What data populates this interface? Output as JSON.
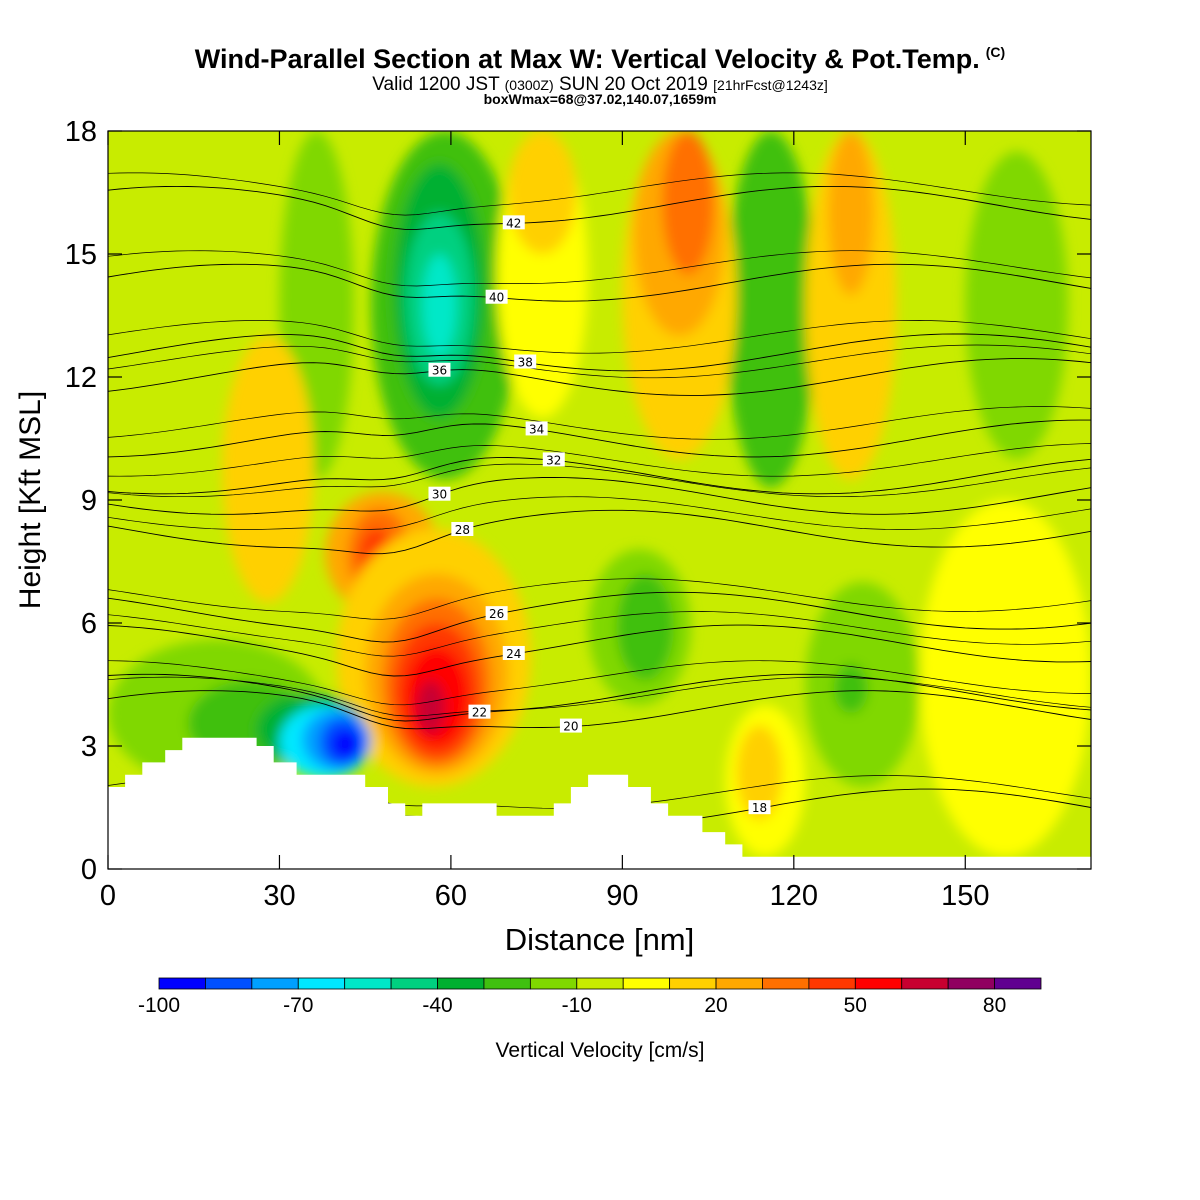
{
  "header": {
    "title": "Wind-Parallel Section at Max W: Vertical Velocity & Pot.Temp.",
    "copyright": "(C)",
    "valid_prefix": "Valid 1200 JST",
    "valid_zulu": "(0300Z)",
    "valid_date": "SUN 20 Oct 2019",
    "forecast_info": "[21hrFcst@1243z]",
    "box_info": "boxWmax=68@37.02,140.07,1659m"
  },
  "chart_data": {
    "type": "heatmap",
    "xlabel": "Distance [nm]",
    "ylabel": "Height [Kft MSL]",
    "xlim": [
      0,
      172
    ],
    "ylim": [
      0,
      18
    ],
    "x_ticks": [
      0,
      30,
      60,
      90,
      120,
      150
    ],
    "y_ticks": [
      0,
      3,
      6,
      9,
      12,
      15,
      18
    ],
    "x_tick_labels": [
      "0",
      "30",
      "60",
      "90",
      "120",
      "150"
    ],
    "y_tick_labels": [
      "0",
      "3",
      "6",
      "9",
      "12",
      "15",
      "18"
    ],
    "colorbar": {
      "label": "Vertical Velocity [cm/s]",
      "tick_labels": [
        "-100",
        "-70",
        "-40",
        "-10",
        "20",
        "50",
        "80"
      ],
      "colors": [
        "#0000ff",
        "#0050ff",
        "#00a0ff",
        "#00e8ff",
        "#00e8c8",
        "#00d080",
        "#00b030",
        "#40c010",
        "#80d800",
        "#c8ec00",
        "#ffff00",
        "#ffd000",
        "#ffa800",
        "#ff7000",
        "#ff3800",
        "#ff0000",
        "#c80030",
        "#900060",
        "#600090"
      ]
    },
    "background_color": "#c8ec00",
    "regions": [
      {
        "color": "#80d800",
        "x": [
          30,
          43
        ],
        "y": [
          9.5,
          18
        ],
        "value": -20
      },
      {
        "color": "#40c010",
        "x": [
          46,
          72
        ],
        "y": [
          9.5,
          18
        ],
        "value": -30
      },
      {
        "color": "#00b030",
        "x": [
          50,
          66
        ],
        "y": [
          11,
          17.2
        ],
        "value": -40
      },
      {
        "color": "#00d080",
        "x": [
          52,
          64
        ],
        "y": [
          11.8,
          16
        ],
        "value": -50
      },
      {
        "color": "#00e8c8",
        "x": [
          55,
          61
        ],
        "y": [
          12.5,
          15
        ],
        "value": -60
      },
      {
        "color": "#40c010",
        "x": [
          108,
          124
        ],
        "y": [
          9.3,
          18
        ],
        "value": -30
      },
      {
        "color": "#80d800",
        "x": [
          150,
          168
        ],
        "y": [
          10,
          17.5
        ],
        "value": -20
      },
      {
        "color": "#ffff00",
        "x": [
          68,
          84
        ],
        "y": [
          11,
          18
        ],
        "value": 10
      },
      {
        "color": "#ffd000",
        "x": [
          70,
          82
        ],
        "y": [
          15,
          18
        ],
        "value": 20
      },
      {
        "color": "#ffd000",
        "x": [
          90,
          110
        ],
        "y": [
          10,
          18
        ],
        "value": 20
      },
      {
        "color": "#ffa800",
        "x": [
          92,
          108
        ],
        "y": [
          13,
          18
        ],
        "value": 30
      },
      {
        "color": "#ff7000",
        "x": [
          97,
          106
        ],
        "y": [
          14.5,
          18
        ],
        "value": 40
      },
      {
        "color": "#ffd000",
        "x": [
          122,
          138
        ],
        "y": [
          9.5,
          18
        ],
        "value": 20
      },
      {
        "color": "#ffa800",
        "x": [
          126,
          134
        ],
        "y": [
          14,
          18
        ],
        "value": 30
      },
      {
        "color": "#ffd000",
        "x": [
          20,
          36
        ],
        "y": [
          6.5,
          13
        ],
        "value": 20
      },
      {
        "color": "#ffa800",
        "x": [
          38,
          58
        ],
        "y": [
          6.2,
          9.2
        ],
        "value": 30
      },
      {
        "color": "#ff7000",
        "x": [
          42,
          53
        ],
        "y": [
          6.5,
          8.8
        ],
        "value": 40
      },
      {
        "color": "#ff3800",
        "x": [
          44,
          50
        ],
        "y": [
          7.0,
          8.3
        ],
        "value": 50
      },
      {
        "color": "#ffd000",
        "x": [
          40,
          74
        ],
        "y": [
          2.0,
          8.3
        ],
        "value": 20
      },
      {
        "color": "#ffa800",
        "x": [
          45,
          70
        ],
        "y": [
          2.3,
          7.2
        ],
        "value": 30
      },
      {
        "color": "#ff7000",
        "x": [
          48,
          67
        ],
        "y": [
          2.5,
          6.6
        ],
        "value": 40
      },
      {
        "color": "#ff3800",
        "x": [
          50,
          65
        ],
        "y": [
          2.7,
          6.0
        ],
        "value": 50
      },
      {
        "color": "#ff0000",
        "x": [
          52,
          63
        ],
        "y": [
          3.0,
          5.4
        ],
        "value": 60
      },
      {
        "color": "#c80030",
        "x": [
          54,
          59
        ],
        "y": [
          3.3,
          4.6
        ],
        "value": 70
      },
      {
        "color": "#80d800",
        "x": [
          84,
          102
        ],
        "y": [
          4.0,
          7.8
        ],
        "value": -20
      },
      {
        "color": "#40c010",
        "x": [
          89,
          99
        ],
        "y": [
          4.6,
          7.2
        ],
        "value": -30
      },
      {
        "color": "#80d800",
        "x": [
          122,
          142
        ],
        "y": [
          2.0,
          7.0
        ],
        "value": -20
      },
      {
        "color": "#40c010",
        "x": [
          127,
          133
        ],
        "y": [
          3.8,
          5.0
        ],
        "value": -30
      },
      {
        "color": "#80d800",
        "x": [
          0,
          38
        ],
        "y": [
          2.0,
          5.6
        ],
        "value": -20
      },
      {
        "color": "#40c010",
        "x": [
          14,
          36
        ],
        "y": [
          2.5,
          4.6
        ],
        "value": -30
      },
      {
        "color": "#00b030",
        "x": [
          26,
          45
        ],
        "y": [
          2.5,
          4.3
        ],
        "value": -40
      },
      {
        "color": "#00e8ff",
        "x": [
          30,
          46
        ],
        "y": [
          2.2,
          4.0
        ],
        "value": -60
      },
      {
        "color": "#00a0ff",
        "x": [
          34,
          46
        ],
        "y": [
          2.4,
          3.9
        ],
        "value": -70
      },
      {
        "color": "#0050ff",
        "x": [
          37,
          45
        ],
        "y": [
          2.5,
          3.7
        ],
        "value": -80
      },
      {
        "color": "#0000ff",
        "x": [
          39,
          44
        ],
        "y": [
          2.7,
          3.4
        ],
        "value": -90
      },
      {
        "color": "#ffff00",
        "x": [
          108,
          122
        ],
        "y": [
          0.3,
          4.0
        ],
        "value": 10
      },
      {
        "color": "#ffd000",
        "x": [
          110,
          118
        ],
        "y": [
          1.2,
          3.5
        ],
        "value": 20
      },
      {
        "color": "#ffff00",
        "x": [
          142,
          172
        ],
        "y": [
          0.3,
          9.0
        ],
        "value": 10
      }
    ],
    "contours": [
      {
        "label": "18",
        "y": 1.5,
        "label_x": 114
      },
      {
        "label": "20",
        "y": 3.9,
        "label_x": 81
      },
      {
        "label": "22",
        "y": 4.3,
        "label_x": 65
      },
      {
        "label": "24",
        "y": 5.5,
        "label_x": 71
      },
      {
        "label": "26",
        "y": 6.3,
        "label_x": 68
      },
      {
        "label": "28",
        "y": 8.3,
        "label_x": 62
      },
      {
        "label": "30",
        "y": 9.1,
        "label_x": 58
      },
      {
        "label": "32",
        "y": 9.6,
        "label_x": 78
      },
      {
        "label": "34",
        "y": 10.5,
        "label_x": 75
      },
      {
        "label": "36",
        "y": 12.0,
        "label_x": 58
      },
      {
        "label": "38",
        "y": 12.6,
        "label_x": 73
      },
      {
        "label": "40",
        "y": 14.3,
        "label_x": 68
      },
      {
        "label": "42",
        "y": 16.2,
        "label_x": 71
      }
    ],
    "terrain": [
      [
        0,
        2.0
      ],
      [
        3,
        2.0
      ],
      [
        3,
        2.3
      ],
      [
        6,
        2.3
      ],
      [
        6,
        2.6
      ],
      [
        10,
        2.6
      ],
      [
        10,
        2.9
      ],
      [
        13,
        2.9
      ],
      [
        13,
        3.2
      ],
      [
        26,
        3.2
      ],
      [
        26,
        3.0
      ],
      [
        29,
        3.0
      ],
      [
        29,
        2.6
      ],
      [
        33,
        2.6
      ],
      [
        33,
        2.3
      ],
      [
        45,
        2.3
      ],
      [
        45,
        2.0
      ],
      [
        49,
        2.0
      ],
      [
        49,
        1.6
      ],
      [
        52,
        1.6
      ],
      [
        52,
        1.3
      ],
      [
        55,
        1.3
      ],
      [
        55,
        1.6
      ],
      [
        68,
        1.6
      ],
      [
        68,
        1.3
      ],
      [
        78,
        1.3
      ],
      [
        78,
        1.6
      ],
      [
        81,
        1.6
      ],
      [
        81,
        2.0
      ],
      [
        84,
        2.0
      ],
      [
        84,
        2.3
      ],
      [
        91,
        2.3
      ],
      [
        91,
        2.0
      ],
      [
        95,
        2.0
      ],
      [
        95,
        1.6
      ],
      [
        98,
        1.6
      ],
      [
        98,
        1.3
      ],
      [
        104,
        1.3
      ],
      [
        104,
        0.9
      ],
      [
        108,
        0.9
      ],
      [
        108,
        0.6
      ],
      [
        111,
        0.6
      ],
      [
        111,
        0.3
      ],
      [
        172,
        0.3
      ],
      [
        172,
        0
      ],
      [
        0,
        0
      ]
    ]
  }
}
